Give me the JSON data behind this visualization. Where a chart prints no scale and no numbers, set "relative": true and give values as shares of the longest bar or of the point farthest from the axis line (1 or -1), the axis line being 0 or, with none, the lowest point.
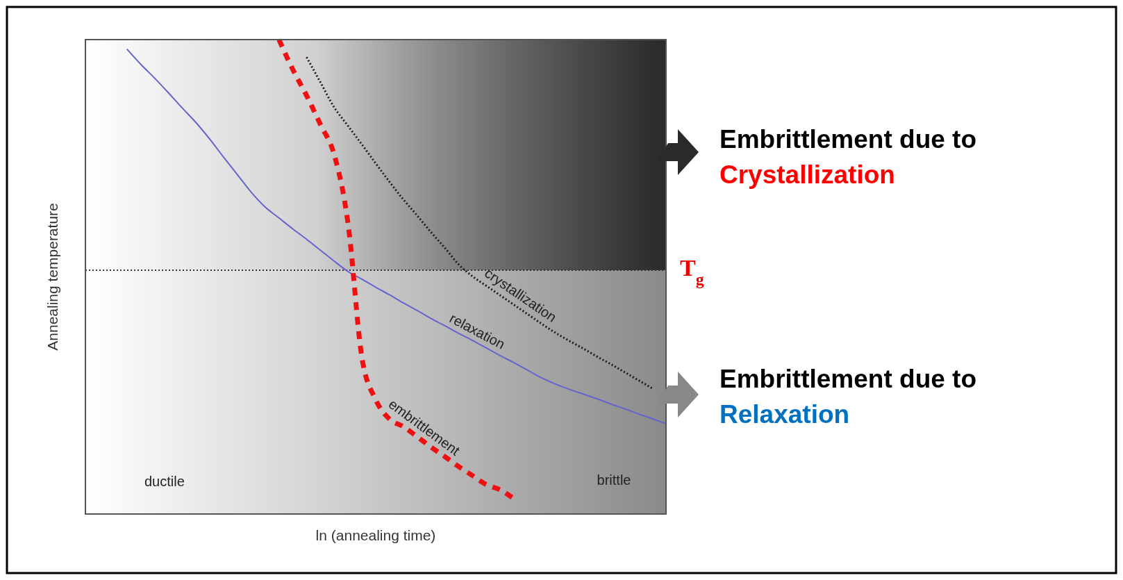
{
  "chart_data": {
    "type": "line",
    "relative": true,
    "xlabel": "ln (annealing time)",
    "ylabel": "Annealing temperature",
    "categories": [
      null,
      null,
      null,
      null,
      null,
      null,
      null,
      null,
      null,
      null,
      null,
      null,
      null,
      null,
      null,
      null,
      null,
      null,
      null,
      null,
      null,
      null,
      null,
      null,
      null,
      null,
      null,
      null,
      null,
      null,
      null,
      null,
      null,
      null,
      null,
      null,
      null,
      null,
      null,
      null,
      null,
      null,
      null
    ],
    "series": [
      {
        "name": "relaxation",
        "color": "#6464cc",
        "line_style": "solid",
        "values": [
          null,
          null,
          null,
          0.98,
          0.948,
          0.919,
          0.888,
          0.856,
          0.825,
          0.79,
          0.752,
          0.715,
          0.678,
          0.647,
          0.624,
          0.601,
          0.579,
          0.556,
          0.533,
          0.511,
          0.495,
          0.478,
          0.462,
          0.445,
          0.429,
          0.412,
          0.397,
          0.381,
          0.366,
          0.35,
          0.334,
          0.319,
          0.303,
          0.287,
          0.274,
          0.263,
          0.253,
          0.243,
          0.232,
          0.222,
          0.211,
          0.201,
          0.19
        ]
      },
      {
        "name": "crystallization",
        "color": "#1a1a1a",
        "line_style": "dotted",
        "values": [
          null,
          null,
          null,
          null,
          null,
          null,
          null,
          null,
          null,
          null,
          null,
          null,
          null,
          null,
          null,
          null,
          0.963,
          0.91,
          0.857,
          0.818,
          0.779,
          0.739,
          0.7,
          0.663,
          0.629,
          0.594,
          0.561,
          0.526,
          0.501,
          0.481,
          0.461,
          0.441,
          0.421,
          0.401,
          0.382,
          0.365,
          0.349,
          0.332,
          0.316,
          0.299,
          0.282,
          0.265,
          null
        ]
      },
      {
        "name": "embrittlement",
        "color": "#ee1111",
        "line_style": "dashed",
        "values": [
          null,
          null,
          null,
          null,
          null,
          null,
          null,
          null,
          null,
          null,
          null,
          null,
          null,
          null,
          1,
          0.937,
          0.882,
          0.821,
          0.757,
          0.612,
          0.33,
          0.241,
          0.2,
          0.184,
          0.163,
          0.141,
          0.121,
          0.1,
          0.081,
          0.062,
          0.051,
          0.032,
          null,
          null,
          null,
          null,
          null,
          null,
          null,
          null,
          null,
          null,
          null
        ]
      }
    ],
    "bands": [
      {
        "axis": "y",
        "from": 0.514,
        "to": 1,
        "color": "#000000"
      }
    ],
    "ref_lines": [
      {
        "axis": "y",
        "value": 0.514,
        "label": "T$_{g}$",
        "color": "#333333",
        "line_style": "dotted"
      }
    ],
    "annotations": [
      "ductile",
      "brittle",
      "Embrittlement due to",
      "Crystallization",
      "Embrittlement due to",
      "Relaxation"
    ],
    "marker": "none",
    "grid": false,
    "legend": false
  }
}
